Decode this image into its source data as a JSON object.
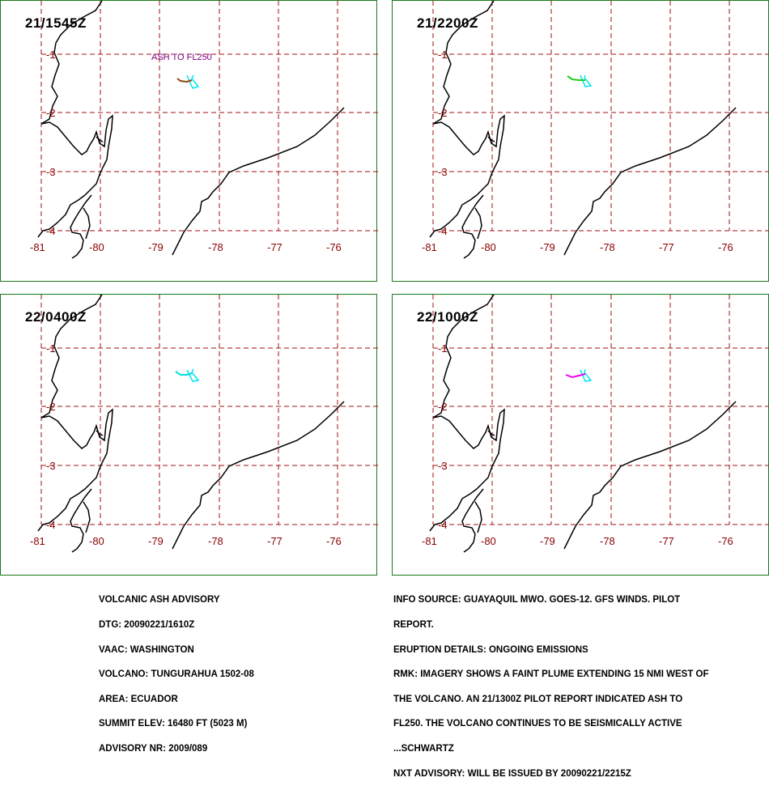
{
  "panels": [
    {
      "time": "21/1545Z",
      "annotation": "ASH TO FL250",
      "plume_color": "#8b4513"
    },
    {
      "time": "21/2200Z",
      "annotation": "",
      "plume_color": "#22cc22"
    },
    {
      "time": "22/0400Z",
      "annotation": "",
      "plume_color": "#00dddd"
    },
    {
      "time": "22/1000Z",
      "annotation": "",
      "plume_color": "#ee00ee"
    }
  ],
  "axes": {
    "lon_labels": [
      "-81",
      "-80",
      "-79",
      "-78",
      "-77",
      "-76"
    ],
    "lat_labels": [
      "-1",
      "-2",
      "-3",
      "-4"
    ]
  },
  "colors": {
    "frame": "#1a7a1a",
    "grid": "#a01010",
    "label": "#8b0000",
    "coast": "#000000",
    "forecast_area": "#00e5ee",
    "annotation": "#800080"
  },
  "advisory_left": [
    "VOLCANIC ASH ADVISORY",
    "DTG: 20090221/1610Z",
    "VAAC: WASHINGTON",
    "VOLCANO: TUNGURAHUA 1502-08",
    "AREA: ECUADOR",
    "SUMMIT ELEV: 16480 FT (5023 M)",
    "ADVISORY NR: 2009/089"
  ],
  "advisory_right": [
    "INFO SOURCE: GUAYAQUIL MWO. GOES-12. GFS WINDS. PILOT",
    "REPORT.",
    "ERUPTION DETAILS: ONGOING EMISSIONS",
    "RMK: IMAGERY SHOWS A FAINT PLUME EXTENDING 15 NMI WEST OF",
    "THE VOLCANO. AN 21/1300Z PILOT REPORT INDICATED ASH TO",
    "FL250. THE VOLCANO CONTINUES TO BE SEISMICALLY ACTIVE",
    "...SCHWARTZ",
    "NXT ADVISORY: WILL BE ISSUED BY 20090221/2215Z"
  ]
}
